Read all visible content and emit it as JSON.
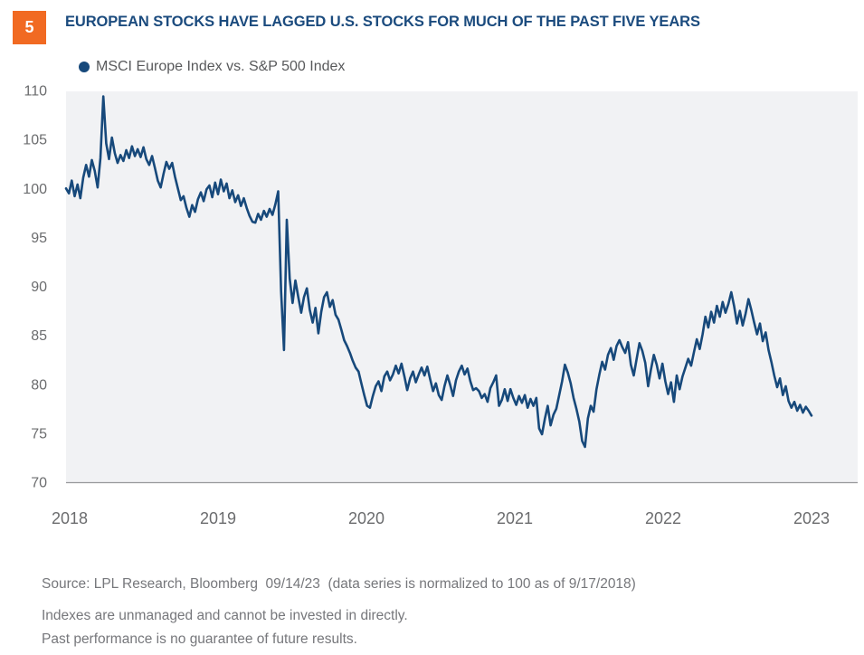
{
  "badge": {
    "number": "5",
    "color": "#F16A22"
  },
  "title": "EUROPEAN STOCKS HAVE LAGGED U.S. STOCKS FOR MUCH OF THE PAST FIVE YEARS",
  "legend": {
    "label": "MSCI Europe Index vs. S&P 500 Index",
    "marker_color": "#17497B"
  },
  "footer": {
    "source": "Source: LPL Research, Bloomberg  09/14/23  (data series is normalized to 100 as of 9/17/2018)",
    "disclosure1": "Indexes are unmanaged and cannot be invested in directly.",
    "disclosure2": "Past performance is no guarantee of future results."
  },
  "chart_data": {
    "type": "line",
    "title": "EUROPEAN STOCKS HAVE LAGGED U.S. STOCKS FOR MUCH OF THE PAST FIVE YEARS",
    "series_name": "MSCI Europe Index vs. S&P 500 Index (ratio, normalized to 100 as of 9/17/2018)",
    "x_unit": "weekly observations, 9/17/2018 through 9/14/2023",
    "x_tick_labels": [
      "2018",
      "2019",
      "2020",
      "2021",
      "2022",
      "2023"
    ],
    "y_ticks": [
      110,
      105,
      100,
      95,
      90,
      85,
      80,
      75,
      70
    ],
    "ylim": [
      70,
      110
    ],
    "grid": false,
    "legend_position": "top-left",
    "line_color": "#17497B",
    "plot_bg": "#F1F2F4",
    "axis_line_color": "#97989A",
    "values": [
      100.0,
      99.5,
      100.8,
      99.2,
      100.4,
      99.0,
      101.1,
      102.4,
      101.2,
      102.9,
      101.8,
      100.1,
      103.1,
      109.4,
      104.6,
      103.0,
      105.2,
      103.6,
      102.6,
      103.4,
      102.8,
      103.9,
      103.1,
      104.3,
      103.3,
      104.0,
      103.2,
      104.2,
      103.0,
      102.4,
      103.3,
      102.1,
      100.8,
      100.1,
      101.5,
      102.7,
      102.0,
      102.6,
      101.2,
      100.0,
      98.8,
      99.2,
      98.0,
      97.1,
      98.3,
      97.6,
      98.9,
      99.6,
      98.7,
      99.9,
      100.3,
      99.1,
      100.6,
      99.4,
      100.9,
      99.7,
      100.5,
      99.0,
      99.8,
      98.6,
      99.3,
      98.2,
      99.0,
      98.0,
      97.2,
      96.6,
      96.5,
      97.4,
      96.8,
      97.7,
      97.1,
      97.9,
      97.3,
      98.4,
      99.7,
      89.5,
      83.5,
      96.8,
      90.8,
      88.3,
      90.6,
      88.9,
      87.3,
      88.9,
      89.8,
      87.6,
      86.3,
      87.8,
      85.2,
      87.4,
      88.9,
      89.4,
      87.9,
      88.6,
      87.1,
      86.6,
      85.6,
      84.5,
      83.9,
      83.2,
      82.4,
      81.7,
      81.3,
      80.1,
      78.9,
      77.8,
      77.6,
      78.8,
      79.8,
      80.3,
      79.3,
      80.8,
      81.3,
      80.4,
      81.0,
      81.9,
      81.1,
      82.1,
      80.8,
      79.4,
      80.6,
      81.3,
      80.2,
      81.0,
      81.7,
      80.9,
      81.8,
      80.5,
      79.3,
      80.1,
      78.9,
      78.4,
      79.8,
      80.9,
      79.9,
      78.8,
      80.4,
      81.3,
      81.9,
      81.0,
      81.6,
      80.3,
      79.4,
      79.6,
      79.3,
      78.6,
      79.0,
      78.2,
      79.6,
      80.2,
      80.9,
      77.8,
      78.4,
      79.5,
      78.3,
      79.5,
      78.6,
      77.9,
      78.8,
      78.1,
      78.9,
      77.6,
      78.5,
      77.8,
      78.6,
      75.5,
      74.9,
      76.5,
      77.8,
      75.8,
      76.9,
      77.5,
      78.9,
      80.3,
      82.0,
      81.2,
      80.1,
      78.6,
      77.5,
      76.2,
      74.2,
      73.6,
      76.5,
      77.8,
      77.2,
      79.5,
      81.0,
      82.3,
      81.5,
      83.0,
      83.7,
      82.5,
      83.9,
      84.5,
      83.8,
      83.2,
      84.3,
      82.0,
      80.9,
      82.6,
      84.2,
      83.4,
      82.2,
      79.8,
      81.5,
      83.0,
      82.0,
      80.6,
      82.1,
      80.3,
      79.0,
      80.2,
      78.2,
      80.9,
      79.5,
      80.8,
      81.7,
      82.6,
      81.9,
      83.3,
      84.6,
      83.6,
      85.1,
      86.9,
      85.8,
      87.4,
      86.3,
      88.0,
      86.9,
      88.4,
      87.3,
      88.2,
      89.4,
      88.0,
      86.2,
      87.5,
      86.0,
      87.2,
      88.7,
      87.6,
      86.3,
      85.1,
      86.2,
      84.4,
      85.3,
      83.5,
      82.3,
      80.9,
      79.7,
      80.6,
      78.9,
      79.8,
      78.3,
      77.6,
      78.2,
      77.3,
      77.9,
      77.1,
      77.7,
      77.3,
      76.8
    ]
  }
}
